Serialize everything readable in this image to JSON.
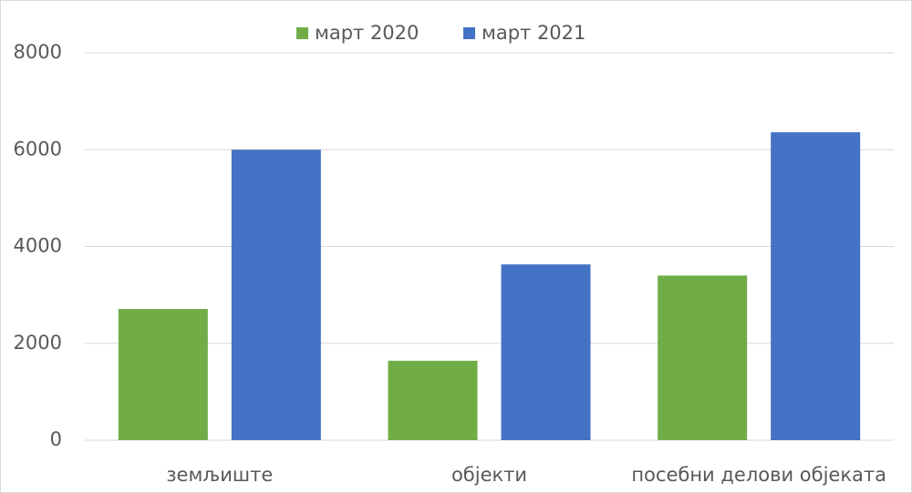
{
  "chart_data": {
    "type": "bar",
    "categories": [
      "земљиште",
      "објекти",
      "посебни делови објеката"
    ],
    "series": [
      {
        "name": "март 2020",
        "color": "#70ad47",
        "values": [
          2710,
          1640,
          3400
        ]
      },
      {
        "name": "март 2021",
        "color": "#4472c4",
        "values": [
          6000,
          3630,
          6360
        ]
      }
    ],
    "ylim": [
      0,
      8000
    ],
    "yticks": [
      0,
      2000,
      4000,
      6000,
      8000
    ],
    "grid": true,
    "legend": "top"
  }
}
